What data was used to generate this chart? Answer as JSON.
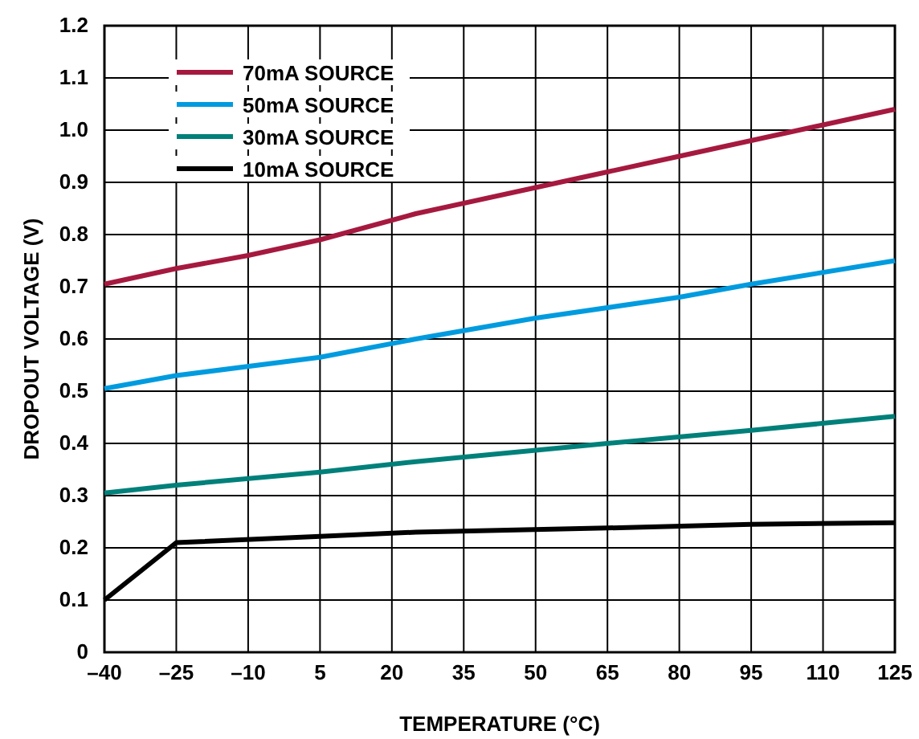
{
  "chart_data": {
    "type": "line",
    "xlabel": "TEMPERATURE (°C)",
    "ylabel": "DROPOUT VOLTAGE (V)",
    "xlim": [
      -40,
      125
    ],
    "xticks": [
      {
        "value": -40,
        "label": "–40"
      },
      {
        "value": -25,
        "label": "–25"
      },
      {
        "value": -10,
        "label": "–10"
      },
      5,
      20,
      35,
      50,
      65,
      80,
      95,
      110,
      125
    ],
    "ylim": [
      0,
      1.2
    ],
    "yticks": [
      {
        "value": 0,
        "label": "0"
      },
      {
        "value": 0.1,
        "label": "0.1"
      },
      {
        "value": 0.2,
        "label": "0.2"
      },
      {
        "value": 0.3,
        "label": "0.3"
      },
      {
        "value": 0.4,
        "label": "0.4"
      },
      {
        "value": 0.5,
        "label": "0.5"
      },
      {
        "value": 0.6,
        "label": "0.6"
      },
      {
        "value": 0.7,
        "label": "0.7"
      },
      {
        "value": 0.8,
        "label": "0.8"
      },
      {
        "value": 0.9,
        "label": "0.9"
      },
      {
        "value": 1.0,
        "label": "1.0"
      },
      {
        "value": 1.1,
        "label": "1.1"
      },
      {
        "value": 1.2,
        "label": "1.2"
      }
    ],
    "grid": true,
    "legend": "top left",
    "line_style": "solid",
    "marker": "none",
    "series": [
      {
        "name": "70mA SOURCE",
        "color": "#a6193f",
        "x": [
          -40,
          -25,
          -10,
          5,
          25,
          50,
          65,
          80,
          95,
          125
        ],
        "values": [
          0.705,
          0.735,
          0.76,
          0.79,
          0.84,
          0.89,
          0.92,
          0.95,
          0.98,
          1.04
        ]
      },
      {
        "name": "50mA SOURCE",
        "color": "#009bdf",
        "x": [
          -40,
          -25,
          5,
          25,
          50,
          80,
          95,
          125
        ],
        "values": [
          0.505,
          0.53,
          0.565,
          0.6,
          0.64,
          0.68,
          0.705,
          0.75
        ]
      },
      {
        "name": "30mA SOURCE",
        "color": "#00807a",
        "x": [
          -40,
          -25,
          5,
          25,
          65,
          95,
          125
        ],
        "values": [
          0.305,
          0.32,
          0.345,
          0.365,
          0.4,
          0.425,
          0.452
        ]
      },
      {
        "name": "10mA SOURCE",
        "color": "#000000",
        "x": [
          -40,
          -25,
          5,
          25,
          65,
          95,
          125
        ],
        "values": [
          0.1,
          0.21,
          0.222,
          0.23,
          0.238,
          0.245,
          0.248
        ]
      }
    ]
  }
}
